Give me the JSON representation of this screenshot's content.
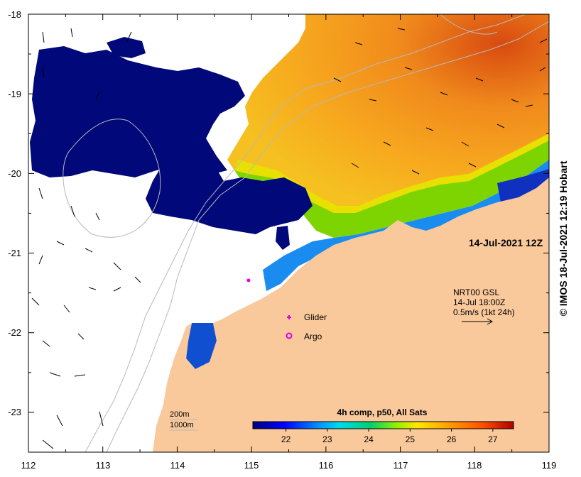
{
  "map": {
    "lon_ticks": [
      "112",
      "113",
      "114",
      "115",
      "116",
      "117",
      "118",
      "119"
    ],
    "lat_ticks": [
      "-18",
      "-19",
      "-20",
      "-21",
      "-22",
      "-23"
    ],
    "lon_range": [
      112,
      119
    ],
    "lat_range": [
      -23.5,
      -18
    ],
    "date_label": "14-Jul-2021 12Z",
    "current_legend": {
      "line1": "NRT00 GSL",
      "line2": "14-Jul 18:00Z",
      "line3": "0.5m/s (1kt 24h)"
    },
    "markers": {
      "glider": "Glider",
      "argo": "Argo"
    },
    "depth_legend": {
      "c200": "200m",
      "c1000": "1000m"
    },
    "colorbar": {
      "title": "4h comp, p50, All Sats",
      "ticks": [
        "22",
        "23",
        "24",
        "25",
        "26",
        "27"
      ],
      "range": [
        21.2,
        27.5
      ],
      "colors": [
        "#00007f",
        "#0000ff",
        "#0080ff",
        "#00d0ff",
        "#00d080",
        "#40e000",
        "#c0f000",
        "#ffe000",
        "#ffa000",
        "#ff6000",
        "#e03000",
        "#b00000"
      ]
    },
    "colors": {
      "land": "#f9c89b",
      "cloud_mask": "#00087a",
      "marker": "#e000e0"
    },
    "credit": "© IMOS 18-Jul-2021 12:19 Hobart"
  }
}
